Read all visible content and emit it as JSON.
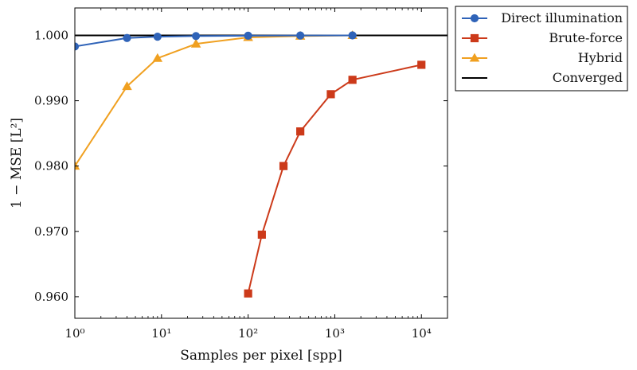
{
  "chart_data": {
    "type": "line",
    "xscale": "log",
    "xlim": [
      1,
      20000
    ],
    "ylim": [
      0.9567,
      1.0042
    ],
    "xlabel": "Samples per pixel [spp]",
    "ylabel": "1 − MSE [L²]",
    "x_ticks": [
      {
        "value": 1,
        "label": "10⁰"
      },
      {
        "value": 10,
        "label": "10¹"
      },
      {
        "value": 100,
        "label": "10²"
      },
      {
        "value": 1000,
        "label": "10³"
      },
      {
        "value": 10000,
        "label": "10⁴"
      }
    ],
    "y_ticks": [
      {
        "value": 0.96,
        "label": "0.960"
      },
      {
        "value": 0.97,
        "label": "0.970"
      },
      {
        "value": 0.98,
        "label": "0.980"
      },
      {
        "value": 0.99,
        "label": "0.990"
      },
      {
        "value": 1.0,
        "label": "1.000"
      }
    ],
    "grid": false,
    "legend_position": "outside-right",
    "series": [
      {
        "name": "Direct illumination",
        "color": "#2f63b8",
        "marker": "circle",
        "x": [
          1,
          4,
          9,
          25,
          100,
          400,
          1600
        ],
        "y": [
          0.9983,
          0.9996,
          0.9998,
          0.9999,
          0.99995,
          0.99998,
          1.0
        ]
      },
      {
        "name": "Brute-force",
        "color": "#cc3a1a",
        "marker": "square",
        "x": [
          100,
          144,
          256,
          400,
          900,
          1600,
          10000
        ],
        "y": [
          0.9605,
          0.9695,
          0.98,
          0.9853,
          0.991,
          0.9932,
          0.9955
        ]
      },
      {
        "name": "Hybrid",
        "color": "#f0a020",
        "marker": "triangle",
        "x": [
          1,
          4,
          9,
          25,
          100,
          400,
          1600
        ],
        "y": [
          0.98,
          0.9922,
          0.9965,
          0.9987,
          0.9997,
          0.9999,
          1.0
        ]
      },
      {
        "name": "Converged",
        "color": "#000000",
        "marker": "none",
        "x": [
          1,
          20000
        ],
        "y": [
          1.0,
          1.0
        ]
      }
    ]
  }
}
